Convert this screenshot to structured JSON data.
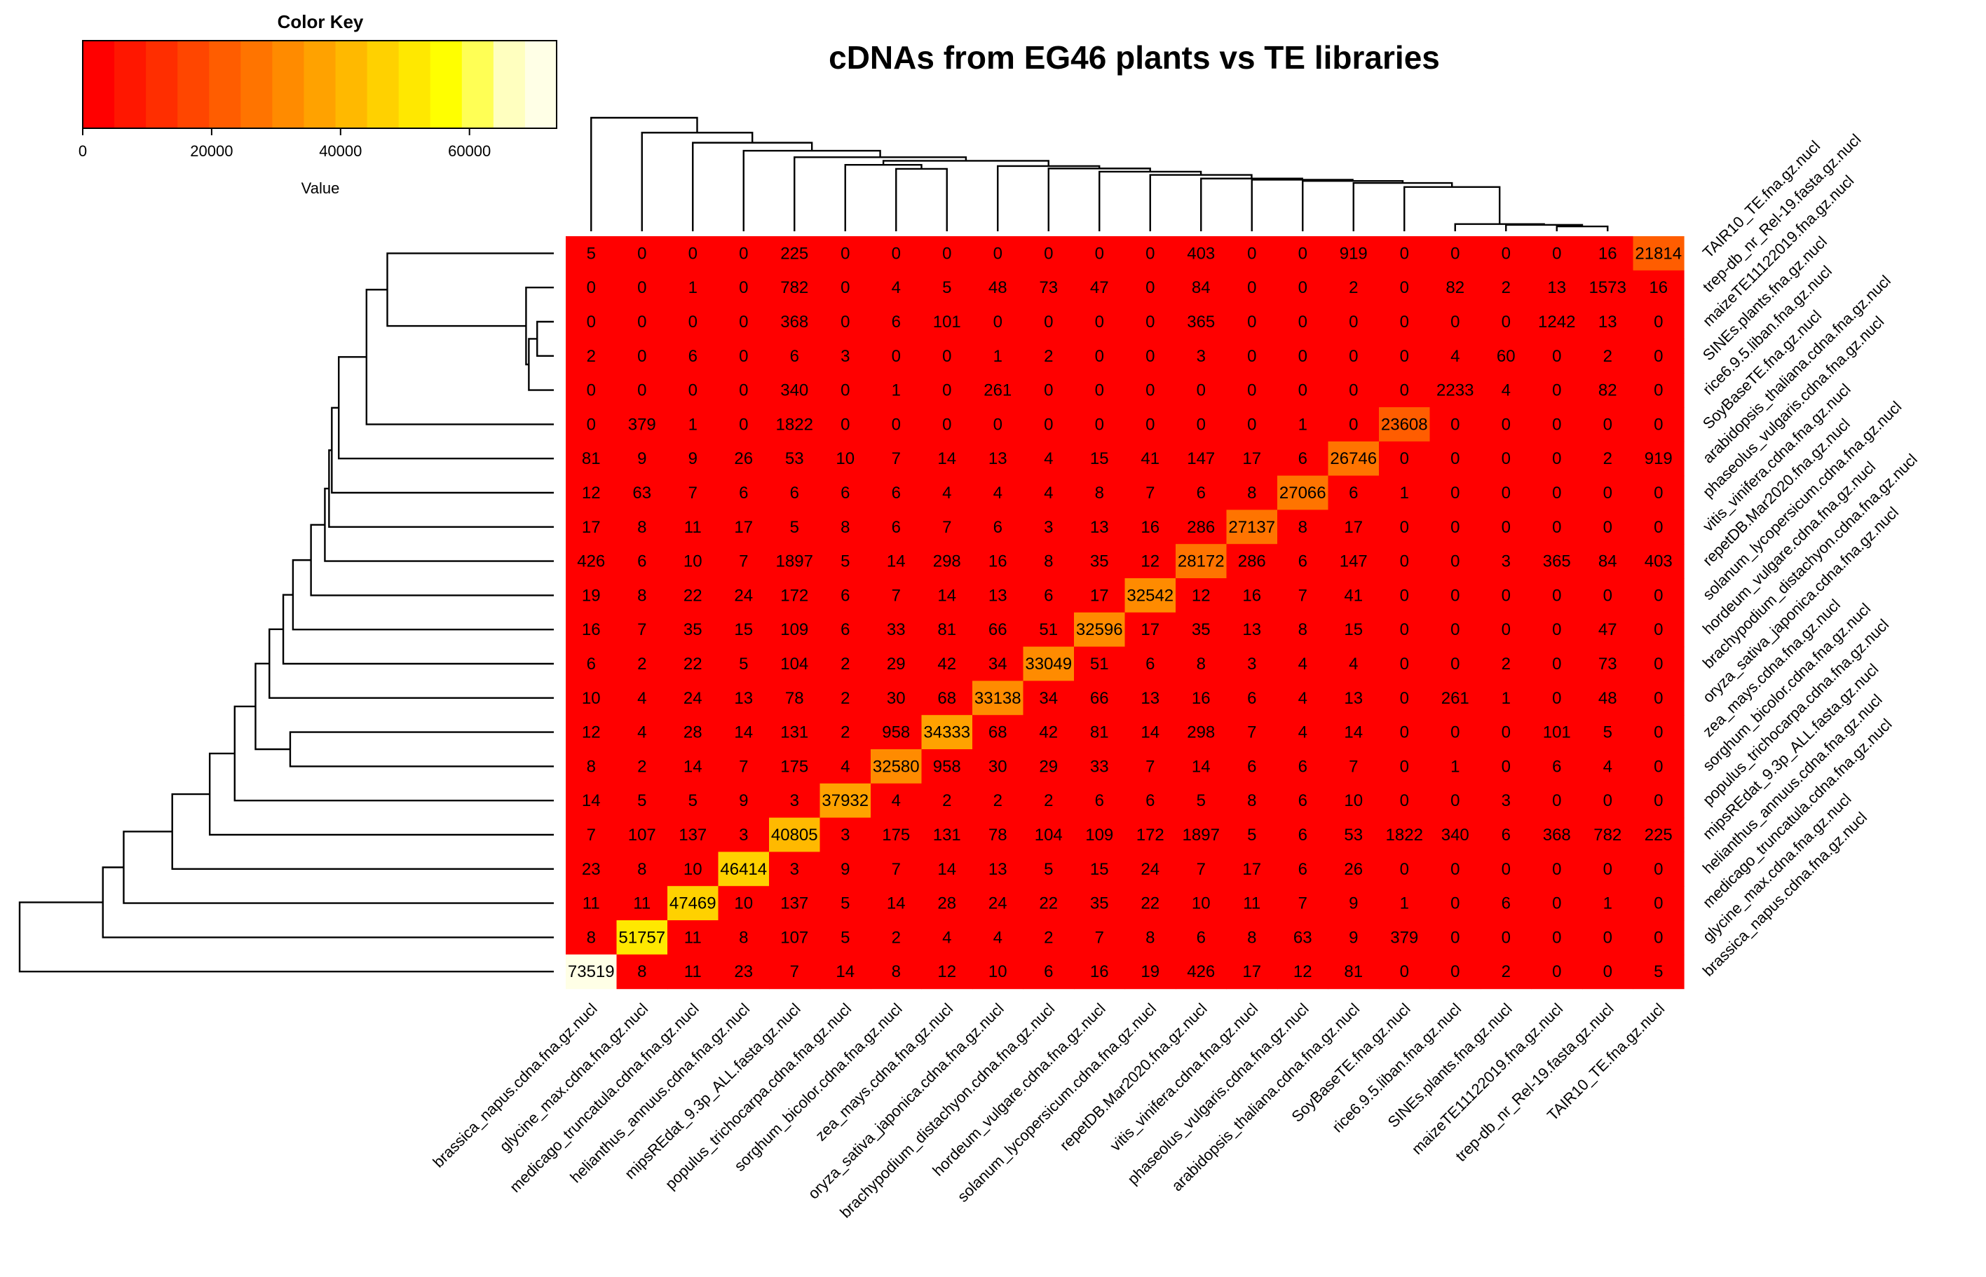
{
  "chart_data": {
    "type": "heatmap",
    "title": "cDNAs from EG46 plants vs TE libraries",
    "color_key": {
      "title": "Color Key",
      "xlabel": "Value",
      "range": [
        0,
        73519
      ],
      "ticks": [
        0,
        20000,
        40000,
        60000
      ],
      "tick_labels": [
        "0",
        "20000",
        "40000",
        "60000"
      ],
      "colors": [
        "#ff0000",
        "#ff1700",
        "#ff2e00",
        "#ff4600",
        "#ff5d00",
        "#ff7400",
        "#ff8b00",
        "#ffa200",
        "#ffb900",
        "#ffd100",
        "#ffe800",
        "#ffff00",
        "#ffff55",
        "#ffffbf",
        "#ffffe6"
      ]
    },
    "columns": [
      "brassica_napus.cdna.fna.gz.nucl",
      "glycine_max.cdna.fna.gz.nucl",
      "medicago_truncatula.cdna.fna.gz.nucl",
      "helianthus_annuus.cdna.fna.gz.nucl",
      "mipsREdat_9.3p_ALL.fasta.gz.nucl",
      "populus_trichocarpa.cdna.fna.gz.nucl",
      "sorghum_bicolor.cdna.fna.gz.nucl",
      "zea_mays.cdna.fna.gz.nucl",
      "oryza_sativa_japonica.cdna.fna.gz.nucl",
      "brachypodium_distachyon.cdna.fna.gz.nucl",
      "hordeum_vulgare.cdna.fna.gz.nucl",
      "solanum_lycopersicum.cdna.fna.gz.nucl",
      "repetDB.Mar2020.fna.gz.nucl",
      "vitis_vinifera.cdna.fna.gz.nucl",
      "phaseolus_vulgaris.cdna.fna.gz.nucl",
      "arabidopsis_thaliana.cdna.fna.gz.nucl",
      "SoyBaseTE.fna.gz.nucl",
      "rice6.9.5.liban.fna.gz.nucl",
      "SINEs.plants.fna.gz.nucl",
      "maizeTE11122019.fna.gz.nucl",
      "trep-db_nr_Rel-19.fasta.gz.nucl",
      "TAIR10_TE.fna.gz.nucl"
    ],
    "rows": [
      "TAIR10_TE.fna.gz.nucl",
      "trep-db_nr_Rel-19.fasta.gz.nucl",
      "maizeTE11122019.fna.gz.nucl",
      "SINEs.plants.fna.gz.nucl",
      "rice6.9.5.liban.fna.gz.nucl",
      "SoyBaseTE.fna.gz.nucl",
      "arabidopsis_thaliana.cdna.fna.gz.nucl",
      "phaseolus_vulgaris.cdna.fna.gz.nucl",
      "vitis_vinifera.cdna.fna.gz.nucl",
      "repetDB.Mar2020.fna.gz.nucl",
      "solanum_lycopersicum.cdna.fna.gz.nucl",
      "hordeum_vulgare.cdna.fna.gz.nucl",
      "brachypodium_distachyon.cdna.fna.gz.nucl",
      "oryza_sativa_japonica.cdna.fna.gz.nucl",
      "zea_mays.cdna.fna.gz.nucl",
      "sorghum_bicolor.cdna.fna.gz.nucl",
      "populus_trichocarpa.cdna.fna.gz.nucl",
      "mipsREdat_9.3p_ALL.fasta.gz.nucl",
      "helianthus_annuus.cdna.fna.gz.nucl",
      "medicago_truncatula.cdna.fna.gz.nucl",
      "glycine_max.cdna.fna.gz.nucl",
      "brassica_napus.cdna.fna.gz.nucl"
    ],
    "values": [
      [
        5,
        0,
        0,
        0,
        225,
        0,
        0,
        0,
        0,
        0,
        0,
        0,
        403,
        0,
        0,
        919,
        0,
        0,
        0,
        0,
        16,
        21814
      ],
      [
        0,
        0,
        1,
        0,
        782,
        0,
        4,
        5,
        48,
        73,
        47,
        0,
        84,
        0,
        0,
        2,
        0,
        82,
        2,
        13,
        1573,
        16
      ],
      [
        0,
        0,
        0,
        0,
        368,
        0,
        6,
        101,
        0,
        0,
        0,
        0,
        365,
        0,
        0,
        0,
        0,
        0,
        0,
        1242,
        13,
        0
      ],
      [
        2,
        0,
        6,
        0,
        6,
        3,
        0,
        0,
        1,
        2,
        0,
        0,
        3,
        0,
        0,
        0,
        0,
        4,
        60,
        0,
        2,
        0
      ],
      [
        0,
        0,
        0,
        0,
        340,
        0,
        1,
        0,
        261,
        0,
        0,
        0,
        0,
        0,
        0,
        0,
        0,
        2233,
        4,
        0,
        82,
        0
      ],
      [
        0,
        379,
        1,
        0,
        1822,
        0,
        0,
        0,
        0,
        0,
        0,
        0,
        0,
        0,
        1,
        0,
        23608,
        0,
        0,
        0,
        0,
        0
      ],
      [
        81,
        9,
        9,
        26,
        53,
        10,
        7,
        14,
        13,
        4,
        15,
        41,
        147,
        17,
        6,
        26746,
        0,
        0,
        0,
        0,
        2,
        919
      ],
      [
        12,
        63,
        7,
        6,
        6,
        6,
        6,
        4,
        4,
        4,
        8,
        7,
        6,
        8,
        27066,
        6,
        1,
        0,
        0,
        0,
        0,
        0
      ],
      [
        17,
        8,
        11,
        17,
        5,
        8,
        6,
        7,
        6,
        3,
        13,
        16,
        286,
        27137,
        8,
        17,
        0,
        0,
        0,
        0,
        0,
        0
      ],
      [
        426,
        6,
        10,
        7,
        1897,
        5,
        14,
        298,
        16,
        8,
        35,
        12,
        28172,
        286,
        6,
        147,
        0,
        0,
        3,
        365,
        84,
        403
      ],
      [
        19,
        8,
        22,
        24,
        172,
        6,
        7,
        14,
        13,
        6,
        17,
        32542,
        12,
        16,
        7,
        41,
        0,
        0,
        0,
        0,
        0,
        0
      ],
      [
        16,
        7,
        35,
        15,
        109,
        6,
        33,
        81,
        66,
        51,
        32596,
        17,
        35,
        13,
        8,
        15,
        0,
        0,
        0,
        0,
        47,
        0
      ],
      [
        6,
        2,
        22,
        5,
        104,
        2,
        29,
        42,
        34,
        33049,
        51,
        6,
        8,
        3,
        4,
        4,
        0,
        0,
        2,
        0,
        73,
        0
      ],
      [
        10,
        4,
        24,
        13,
        78,
        2,
        30,
        68,
        33138,
        34,
        66,
        13,
        16,
        6,
        4,
        13,
        0,
        261,
        1,
        0,
        48,
        0
      ],
      [
        12,
        4,
        28,
        14,
        131,
        2,
        958,
        34333,
        68,
        42,
        81,
        14,
        298,
        7,
        4,
        14,
        0,
        0,
        0,
        101,
        5,
        0
      ],
      [
        8,
        2,
        14,
        7,
        175,
        4,
        32580,
        958,
        30,
        29,
        33,
        7,
        14,
        6,
        6,
        7,
        0,
        1,
        0,
        6,
        4,
        0
      ],
      [
        14,
        5,
        5,
        9,
        3,
        37932,
        4,
        2,
        2,
        2,
        6,
        6,
        5,
        8,
        6,
        10,
        0,
        0,
        3,
        0,
        0,
        0
      ],
      [
        7,
        107,
        137,
        3,
        40805,
        3,
        175,
        131,
        78,
        104,
        109,
        172,
        1897,
        5,
        6,
        53,
        1822,
        340,
        6,
        368,
        782,
        225
      ],
      [
        23,
        8,
        10,
        46414,
        3,
        9,
        7,
        14,
        13,
        5,
        15,
        24,
        7,
        17,
        6,
        26,
        0,
        0,
        0,
        0,
        0,
        0
      ],
      [
        11,
        11,
        47469,
        10,
        137,
        5,
        14,
        28,
        24,
        22,
        35,
        22,
        10,
        11,
        7,
        9,
        1,
        0,
        6,
        0,
        1,
        0
      ],
      [
        8,
        51757,
        11,
        8,
        107,
        5,
        2,
        4,
        4,
        2,
        7,
        8,
        6,
        8,
        63,
        9,
        379,
        0,
        0,
        0,
        0,
        0
      ],
      [
        73519,
        8,
        11,
        23,
        7,
        14,
        8,
        12,
        10,
        6,
        16,
        19,
        426,
        17,
        12,
        81,
        0,
        0,
        2,
        0,
        0,
        5
      ]
    ]
  }
}
